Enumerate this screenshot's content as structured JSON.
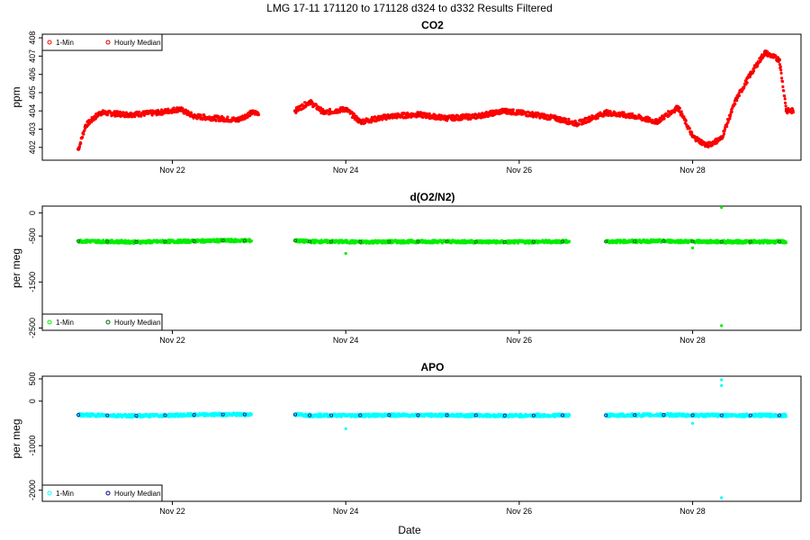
{
  "chart_data": {
    "type": "scatter",
    "title": "LMG   17-11    171120 to 171128    d324 to d332   Results Filtered",
    "xlabel": "Date",
    "x_ticks": [
      "Nov 22",
      "Nov 24",
      "Nov 26",
      "Nov 28"
    ],
    "x_range": [
      "2017-11-20T12:00",
      "2017-11-29T06:00"
    ],
    "panels": [
      {
        "name": "CO2",
        "ylabel": "ppm",
        "ylim": [
          401.3,
          408.2
        ],
        "y_ticks": [
          402,
          403,
          404,
          405,
          406,
          407,
          408
        ],
        "legend": [
          "1-Min",
          "Hourly Median"
        ],
        "colors": {
          "min": "#ff0000",
          "hourly": "#cc0000"
        },
        "segments": [
          {
            "x": "2017-11-20T22:00",
            "y": 401.9
          },
          {
            "x": "2017-11-21T00:00",
            "y": 403.2
          },
          {
            "x": "2017-11-21T04:00",
            "y": 403.9
          },
          {
            "x": "2017-11-21T12:00",
            "y": 403.8
          },
          {
            "x": "2017-11-21T20:00",
            "y": 403.9
          },
          {
            "x": "2017-11-22T02:00",
            "y": 404.1
          },
          {
            "x": "2017-11-22T06:00",
            "y": 403.7
          },
          {
            "x": "2017-11-22T12:00",
            "y": 403.6
          },
          {
            "x": "2017-11-22T18:00",
            "y": 403.5
          },
          {
            "x": "2017-11-22T22:00",
            "y": 403.9
          },
          {
            "x": "2017-11-23T10:00",
            "y": 404.0
          },
          {
            "x": "2017-11-23T14:00",
            "y": 404.5
          },
          {
            "x": "2017-11-23T18:00",
            "y": 403.9
          },
          {
            "x": "2017-11-24T00:00",
            "y": 404.1
          },
          {
            "x": "2017-11-24T04:00",
            "y": 403.4
          },
          {
            "x": "2017-11-24T12:00",
            "y": 403.7
          },
          {
            "x": "2017-11-24T20:00",
            "y": 403.8
          },
          {
            "x": "2017-11-25T04:00",
            "y": 403.6
          },
          {
            "x": "2017-11-25T12:00",
            "y": 403.7
          },
          {
            "x": "2017-11-25T20:00",
            "y": 404.0
          },
          {
            "x": "2017-11-26T04:00",
            "y": 403.8
          },
          {
            "x": "2017-11-26T10:00",
            "y": 403.6
          },
          {
            "x": "2017-11-26T16:00",
            "y": 403.3
          },
          {
            "x": "2017-11-27T00:00",
            "y": 403.9
          },
          {
            "x": "2017-11-27T08:00",
            "y": 403.7
          },
          {
            "x": "2017-11-27T14:00",
            "y": 403.4
          },
          {
            "x": "2017-11-27T20:00",
            "y": 404.2
          },
          {
            "x": "2017-11-28T00:00",
            "y": 402.6
          },
          {
            "x": "2017-11-28T04:00",
            "y": 402.1
          },
          {
            "x": "2017-11-28T08:00",
            "y": 402.5
          },
          {
            "x": "2017-11-28T12:00",
            "y": 404.6
          },
          {
            "x": "2017-11-28T16:00",
            "y": 406.0
          },
          {
            "x": "2017-11-28T20:00",
            "y": 407.2
          },
          {
            "x": "2017-11-29T00:00",
            "y": 406.8
          },
          {
            "x": "2017-11-29T02:00",
            "y": 404.0
          }
        ]
      },
      {
        "name": "d(O2/N2)",
        "ylabel": "per meg",
        "ylim": [
          -2550,
          150
        ],
        "y_ticks": [
          0,
          -500,
          -1500,
          -2500
        ],
        "legend": [
          "1-Min",
          "Hourly Median"
        ],
        "colors": {
          "min": "#00ee00",
          "hourly": "#006400"
        },
        "segments": [
          {
            "x": "2017-11-20T22:00",
            "y": -610
          },
          {
            "x": "2017-11-21T06:00",
            "y": -620
          },
          {
            "x": "2017-11-21T14:00",
            "y": -630
          },
          {
            "x": "2017-11-21T22:00",
            "y": -620
          },
          {
            "x": "2017-11-22T06:00",
            "y": -610
          },
          {
            "x": "2017-11-22T14:00",
            "y": -600
          },
          {
            "x": "2017-11-22T20:00",
            "y": -600
          },
          {
            "x": "2017-11-23T10:00",
            "y": -600
          },
          {
            "x": "2017-11-23T14:00",
            "y": -620
          },
          {
            "x": "2017-11-23T20:00",
            "y": -620
          },
          {
            "x": "2017-11-24T04:00",
            "y": -630
          },
          {
            "x": "2017-11-24T12:00",
            "y": -625
          },
          {
            "x": "2017-11-24T20:00",
            "y": -620
          },
          {
            "x": "2017-11-25T04:00",
            "y": -620
          },
          {
            "x": "2017-11-25T12:00",
            "y": -625
          },
          {
            "x": "2017-11-25T20:00",
            "y": -630
          },
          {
            "x": "2017-11-26T04:00",
            "y": -625
          },
          {
            "x": "2017-11-26T12:00",
            "y": -620
          },
          {
            "x": "2017-11-27T00:00",
            "y": -620
          },
          {
            "x": "2017-11-27T08:00",
            "y": -615
          },
          {
            "x": "2017-11-27T16:00",
            "y": -610
          },
          {
            "x": "2017-11-28T00:00",
            "y": -620
          },
          {
            "x": "2017-11-28T08:00",
            "y": -625
          },
          {
            "x": "2017-11-28T16:00",
            "y": -625
          },
          {
            "x": "2017-11-29T00:00",
            "y": -625
          }
        ],
        "outliers": [
          {
            "x": "2017-11-28T08:00",
            "y": 120
          },
          {
            "x": "2017-11-28T08:00",
            "y": -2450
          },
          {
            "x": "2017-11-24T00:00",
            "y": -880
          },
          {
            "x": "2017-11-28T00:00",
            "y": -760
          }
        ]
      },
      {
        "name": "APO",
        "ylabel": "per meg",
        "ylim": [
          -2250,
          560
        ],
        "y_ticks": [
          500,
          0,
          -1000,
          -2000
        ],
        "legend": [
          "1-Min",
          "Hourly Median"
        ],
        "colors": {
          "min": "#00ffff",
          "hourly": "#00008b"
        },
        "segments": [
          {
            "x": "2017-11-20T22:00",
            "y": -310
          },
          {
            "x": "2017-11-21T06:00",
            "y": -320
          },
          {
            "x": "2017-11-21T14:00",
            "y": -330
          },
          {
            "x": "2017-11-21T22:00",
            "y": -320
          },
          {
            "x": "2017-11-22T06:00",
            "y": -310
          },
          {
            "x": "2017-11-22T14:00",
            "y": -300
          },
          {
            "x": "2017-11-22T20:00",
            "y": -300
          },
          {
            "x": "2017-11-23T10:00",
            "y": -300
          },
          {
            "x": "2017-11-23T14:00",
            "y": -320
          },
          {
            "x": "2017-11-23T20:00",
            "y": -320
          },
          {
            "x": "2017-11-24T04:00",
            "y": -320
          },
          {
            "x": "2017-11-24T12:00",
            "y": -315
          },
          {
            "x": "2017-11-24T20:00",
            "y": -315
          },
          {
            "x": "2017-11-25T04:00",
            "y": -318
          },
          {
            "x": "2017-11-25T12:00",
            "y": -320
          },
          {
            "x": "2017-11-25T20:00",
            "y": -325
          },
          {
            "x": "2017-11-26T04:00",
            "y": -322
          },
          {
            "x": "2017-11-26T12:00",
            "y": -320
          },
          {
            "x": "2017-11-27T00:00",
            "y": -320
          },
          {
            "x": "2017-11-27T08:00",
            "y": -315
          },
          {
            "x": "2017-11-27T16:00",
            "y": -310
          },
          {
            "x": "2017-11-28T00:00",
            "y": -318
          },
          {
            "x": "2017-11-28T08:00",
            "y": -320
          },
          {
            "x": "2017-11-28T16:00",
            "y": -320
          },
          {
            "x": "2017-11-29T00:00",
            "y": -320
          }
        ],
        "outliers": [
          {
            "x": "2017-11-28T08:00",
            "y": 480
          },
          {
            "x": "2017-11-28T08:00",
            "y": 350
          },
          {
            "x": "2017-11-28T08:00",
            "y": -2170
          },
          {
            "x": "2017-11-24T00:00",
            "y": -620
          },
          {
            "x": "2017-11-28T00:00",
            "y": -500
          }
        ]
      }
    ]
  }
}
